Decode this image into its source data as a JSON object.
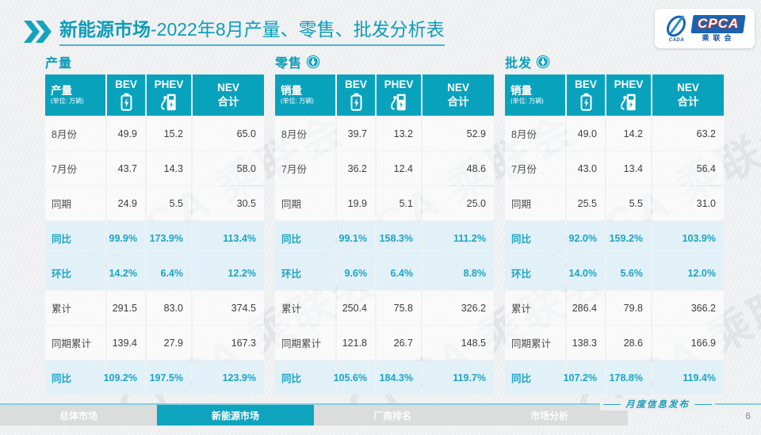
{
  "title": {
    "main": "新能源市场",
    "rest": "-2022年8月产量、零售、批发分析表"
  },
  "logo": {
    "cpca": "CPCA",
    "sub": "乘联会",
    "cada": "CADA"
  },
  "watermark": "CPCA 乘联会",
  "unit_note": "(单位: 万辆)",
  "columns": [
    {
      "label": "BEV",
      "icon": "battery-icon"
    },
    {
      "label": "PHEV",
      "icon": "charger-icon"
    },
    {
      "label": "NEV",
      "sub": "合计"
    }
  ],
  "tables": [
    {
      "section": "产量",
      "arrow": false,
      "corner": "产量",
      "rows": [
        {
          "label": "8月份",
          "values": [
            "49.9",
            "15.2",
            "65.0"
          ],
          "highlight": false
        },
        {
          "label": "7月份",
          "values": [
            "43.7",
            "14.3",
            "58.0"
          ],
          "highlight": false
        },
        {
          "label": "同期",
          "values": [
            "24.9",
            "5.5",
            "30.5"
          ],
          "highlight": false
        },
        {
          "label": "同比",
          "values": [
            "99.9%",
            "173.9%",
            "113.4%"
          ],
          "highlight": true
        },
        {
          "label": "环比",
          "values": [
            "14.2%",
            "6.4%",
            "12.2%"
          ],
          "highlight": true
        },
        {
          "label": "累计",
          "values": [
            "291.5",
            "83.0",
            "374.5"
          ],
          "highlight": false
        },
        {
          "label": "同期累计",
          "values": [
            "139.4",
            "27.9",
            "167.3"
          ],
          "highlight": false
        },
        {
          "label": "同比",
          "values": [
            "109.2%",
            "197.5%",
            "123.9%"
          ],
          "highlight": true
        }
      ]
    },
    {
      "section": "零售",
      "arrow": true,
      "corner": "销量",
      "rows": [
        {
          "label": "8月份",
          "values": [
            "39.7",
            "13.2",
            "52.9"
          ],
          "highlight": false
        },
        {
          "label": "7月份",
          "values": [
            "36.2",
            "12.4",
            "48.6"
          ],
          "highlight": false
        },
        {
          "label": "同期",
          "values": [
            "19.9",
            "5.1",
            "25.0"
          ],
          "highlight": false
        },
        {
          "label": "同比",
          "values": [
            "99.1%",
            "158.3%",
            "111.2%"
          ],
          "highlight": true
        },
        {
          "label": "环比",
          "values": [
            "9.6%",
            "6.4%",
            "8.8%"
          ],
          "highlight": true
        },
        {
          "label": "累计",
          "values": [
            "250.4",
            "75.8",
            "326.2"
          ],
          "highlight": false
        },
        {
          "label": "同期累计",
          "values": [
            "121.8",
            "26.7",
            "148.5"
          ],
          "highlight": false
        },
        {
          "label": "同比",
          "values": [
            "105.6%",
            "184.3%",
            "119.7%"
          ],
          "highlight": true
        }
      ]
    },
    {
      "section": "批发",
      "arrow": true,
      "corner": "销量",
      "rows": [
        {
          "label": "8月份",
          "values": [
            "49.0",
            "14.2",
            "63.2"
          ],
          "highlight": false
        },
        {
          "label": "7月份",
          "values": [
            "43.0",
            "13.4",
            "56.4"
          ],
          "highlight": false
        },
        {
          "label": "同期",
          "values": [
            "25.5",
            "5.5",
            "31.0"
          ],
          "highlight": false
        },
        {
          "label": "同比",
          "values": [
            "92.0%",
            "159.2%",
            "103.9%"
          ],
          "highlight": true
        },
        {
          "label": "环比",
          "values": [
            "14.0%",
            "5.6%",
            "12.0%"
          ],
          "highlight": true
        },
        {
          "label": "累计",
          "values": [
            "286.4",
            "79.8",
            "366.2"
          ],
          "highlight": false
        },
        {
          "label": "同期累计",
          "values": [
            "138.3",
            "28.6",
            "166.9"
          ],
          "highlight": false
        },
        {
          "label": "同比",
          "values": [
            "107.2%",
            "178.8%",
            "119.4%"
          ],
          "highlight": true
        }
      ]
    }
  ],
  "footer": {
    "tabs": [
      {
        "label": "总体市场",
        "active": false
      },
      {
        "label": "新能源市场",
        "active": true
      },
      {
        "label": "厂商排名",
        "active": false
      },
      {
        "label": "市场分析",
        "active": false
      }
    ],
    "publication": "月度信息发布",
    "page": "6"
  },
  "colors": {
    "accent": "#0aa2bc",
    "highlight_bg": "#e2f1f8",
    "highlight_text": "#1ba4c4"
  }
}
